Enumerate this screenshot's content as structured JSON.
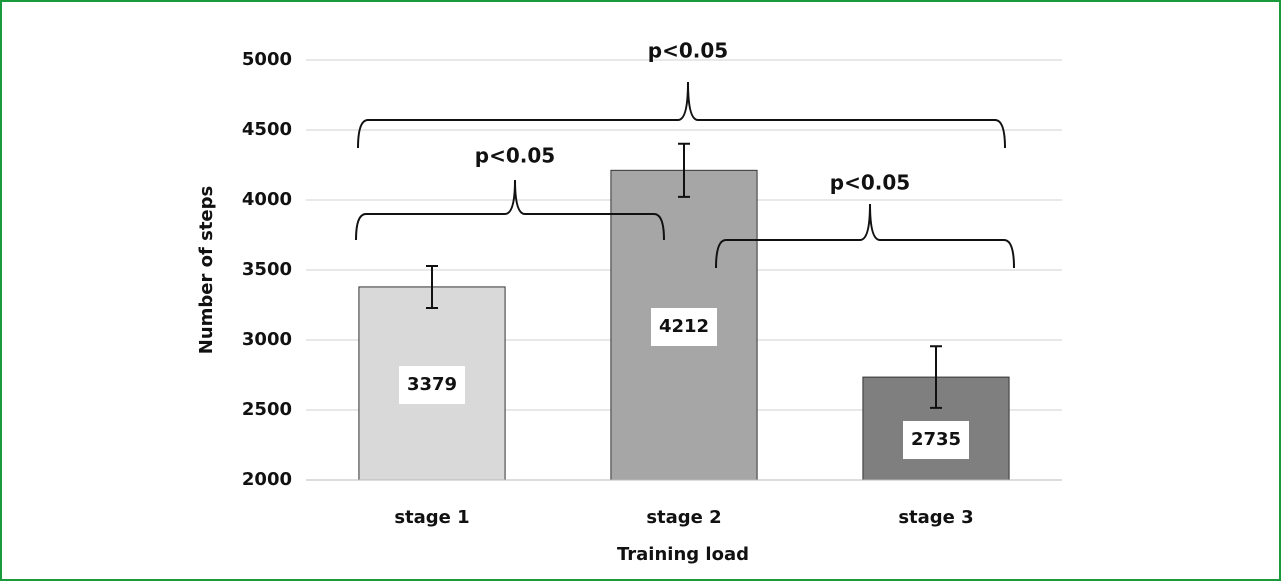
{
  "chart_data": {
    "type": "bar",
    "categories": [
      "stage 1",
      "stage 2",
      "stage 3"
    ],
    "values": [
      3379,
      4212,
      2735
    ],
    "errors": [
      150,
      190,
      220
    ],
    "colors": [
      "#d9d9d9",
      "#a6a6a6",
      "#7f7f7f"
    ],
    "xlabel": "Training load",
    "ylabel": "Number of steps",
    "ylim": [
      2000,
      5000
    ],
    "yticks": [
      2000,
      2500,
      3000,
      3500,
      4000,
      4500,
      5000
    ],
    "grid": true,
    "annotations": [
      "p<0.05",
      "p<0.05",
      "p<0.05"
    ]
  }
}
